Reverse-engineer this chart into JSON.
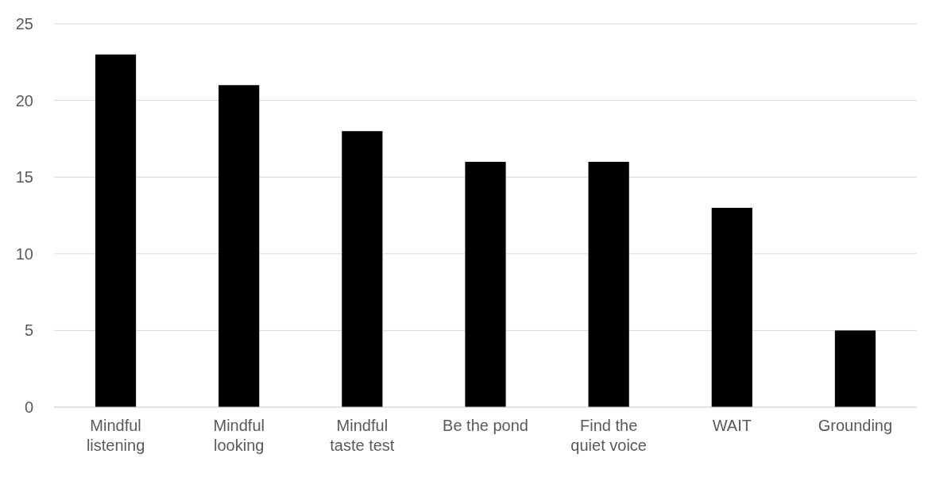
{
  "chart_data": {
    "type": "bar",
    "categories": [
      "Mindful listening",
      "Mindful looking",
      "Mindful taste test",
      "Be the pond",
      "Find the quiet voice",
      "WAIT",
      "Grounding"
    ],
    "values": [
      23,
      21,
      18,
      16,
      16,
      13,
      5
    ],
    "color": "#000000",
    "ylim": [
      0,
      25
    ],
    "yticks": [
      0,
      5,
      10,
      15,
      20,
      25
    ],
    "grid": "y"
  }
}
